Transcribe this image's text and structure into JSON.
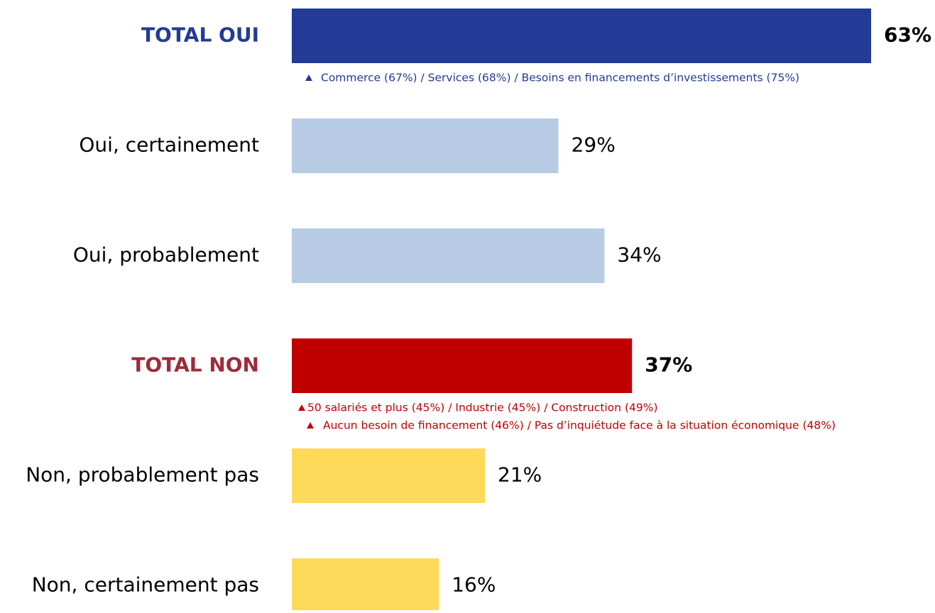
{
  "chart_data": {
    "type": "bar",
    "orientation": "horizontal",
    "categories": [
      "TOTAL OUI",
      "Oui, certainement",
      "Oui, probablement",
      "TOTAL NON",
      "Non, probablement pas",
      "Non, certainement pas"
    ],
    "values": [
      63,
      29,
      34,
      37,
      21,
      16
    ],
    "value_labels": [
      "63%",
      "29%",
      "34%",
      "37%",
      "21%",
      "16%"
    ],
    "colors": [
      "#233a96",
      "#b7cce4",
      "#b7cce4",
      "#c00000",
      "#ffd95a",
      "#ffd95a"
    ],
    "category_label_colors": [
      "#233a96",
      "#000000",
      "#000000",
      "#9e2a3a",
      "#000000",
      "#000000"
    ],
    "annotations": [
      {
        "text": "Commerce (67%) / Services (68%) / Besoins en financements d’investissements (75%)",
        "color": "#233a96"
      },
      {
        "text": "50 salariés et plus (45%) / Industrie (45%) / Construction (49%)",
        "color": "#c00000"
      },
      {
        "text": "Aucun besoin de financement (46%) / Pas d’inquiétude face à la situation économique (48%)",
        "color": "#c00000"
      }
    ]
  }
}
